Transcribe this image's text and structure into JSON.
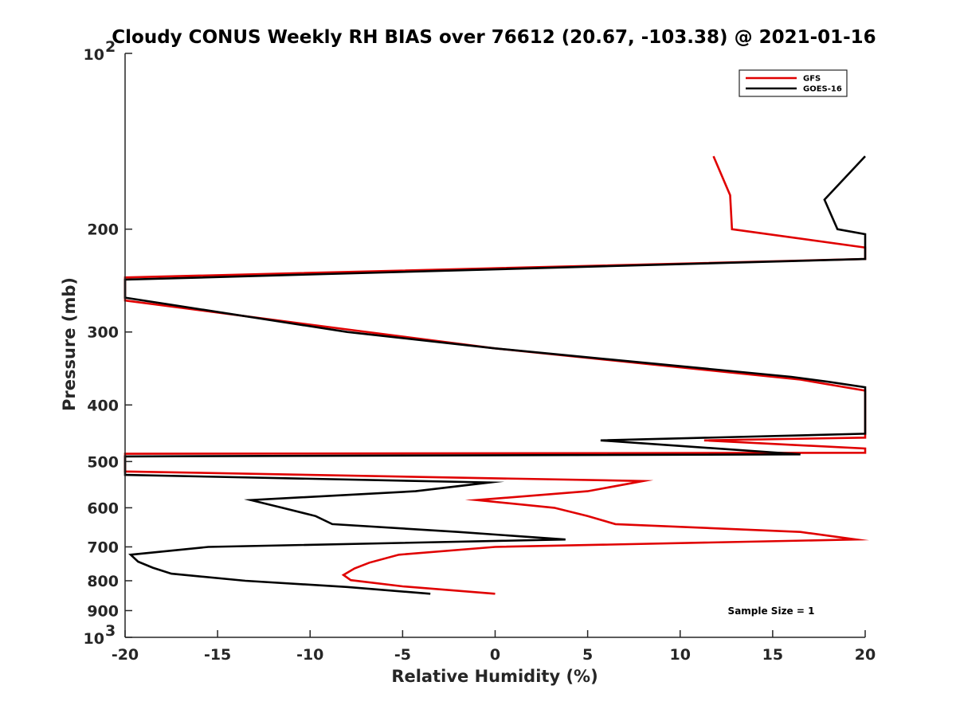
{
  "chart_data": {
    "type": "line",
    "title": "Cloudy CONUS Weekly RH BIAS over 76612 (20.67, -103.38) @ 2021-01-16",
    "xlabel": "Relative Humidity (%)",
    "ylabel": "Pressure (mb)",
    "xlim": [
      -20,
      20
    ],
    "ylim": [
      100,
      1000
    ],
    "y_scale": "log",
    "y_reversed": true,
    "x_ticks": [
      "-20",
      "-15",
      "-10",
      "-5",
      "0",
      "5",
      "10",
      "15",
      "20"
    ],
    "y_ticks": [
      {
        "value": 100,
        "base": "10",
        "exp": "2"
      },
      {
        "value": 200,
        "label": "200"
      },
      {
        "value": 300,
        "label": "300"
      },
      {
        "value": 400,
        "label": "400"
      },
      {
        "value": 500,
        "label": "500"
      },
      {
        "value": 600,
        "label": "600"
      },
      {
        "value": 700,
        "label": "700"
      },
      {
        "value": 800,
        "label": "800"
      },
      {
        "value": 900,
        "label": "900"
      },
      {
        "value": 1000,
        "base": "10",
        "exp": "3"
      }
    ],
    "grid": false,
    "legend_position": "top-right",
    "annotation": "Sample Size = 1",
    "series": [
      {
        "name": "GFS",
        "color": "#e00000",
        "points": [
          [
            11.8,
            150
          ],
          [
            12.7,
            175
          ],
          [
            12.8,
            200
          ],
          [
            20,
            215
          ],
          [
            20,
            225
          ],
          [
            -20,
            242
          ],
          [
            -20,
            265
          ],
          [
            -8,
            297
          ],
          [
            0,
            320
          ],
          [
            16.5,
            362
          ],
          [
            20,
            378
          ],
          [
            20,
            455
          ],
          [
            11.3,
            460
          ],
          [
            20,
            475
          ],
          [
            20,
            483
          ],
          [
            -20,
            485
          ],
          [
            -20,
            520
          ],
          [
            8,
            540
          ],
          [
            5,
            562
          ],
          [
            -1,
            582
          ],
          [
            3.2,
            600
          ],
          [
            5,
            620
          ],
          [
            6.5,
            640
          ],
          [
            16.5,
            660
          ],
          [
            19.5,
            680
          ],
          [
            0,
            700
          ],
          [
            -5.2,
            722
          ],
          [
            -6.8,
            745
          ],
          [
            -7.6,
            762
          ],
          [
            -8.2,
            782
          ],
          [
            -7.8,
            798
          ],
          [
            -5,
            818
          ],
          [
            0,
            842
          ]
        ]
      },
      {
        "name": "GOES-16",
        "color": "#000000",
        "points": [
          [
            20,
            150
          ],
          [
            17.8,
            178
          ],
          [
            18.5,
            200
          ],
          [
            20,
            204
          ],
          [
            20,
            225
          ],
          [
            -20,
            244
          ],
          [
            -20,
            262
          ],
          [
            -8,
            300
          ],
          [
            0,
            320
          ],
          [
            16,
            358
          ],
          [
            18,
            365
          ],
          [
            20,
            373
          ],
          [
            20,
            448
          ],
          [
            5.7,
            460
          ],
          [
            16.5,
            486
          ],
          [
            -20,
            490
          ],
          [
            -20,
            527
          ],
          [
            -0.3,
            543
          ],
          [
            -4.3,
            562
          ],
          [
            -13.2,
            582
          ],
          [
            -11.5,
            600
          ],
          [
            -9.7,
            620
          ],
          [
            -8.8,
            640
          ],
          [
            -2,
            660
          ],
          [
            3.8,
            680
          ],
          [
            -15.5,
            700
          ],
          [
            -19.7,
            722
          ],
          [
            -19.3,
            742
          ],
          [
            -18.5,
            760
          ],
          [
            -17.5,
            778
          ],
          [
            -13.5,
            800
          ],
          [
            -8,
            820
          ],
          [
            -3.5,
            842
          ]
        ]
      }
    ]
  }
}
